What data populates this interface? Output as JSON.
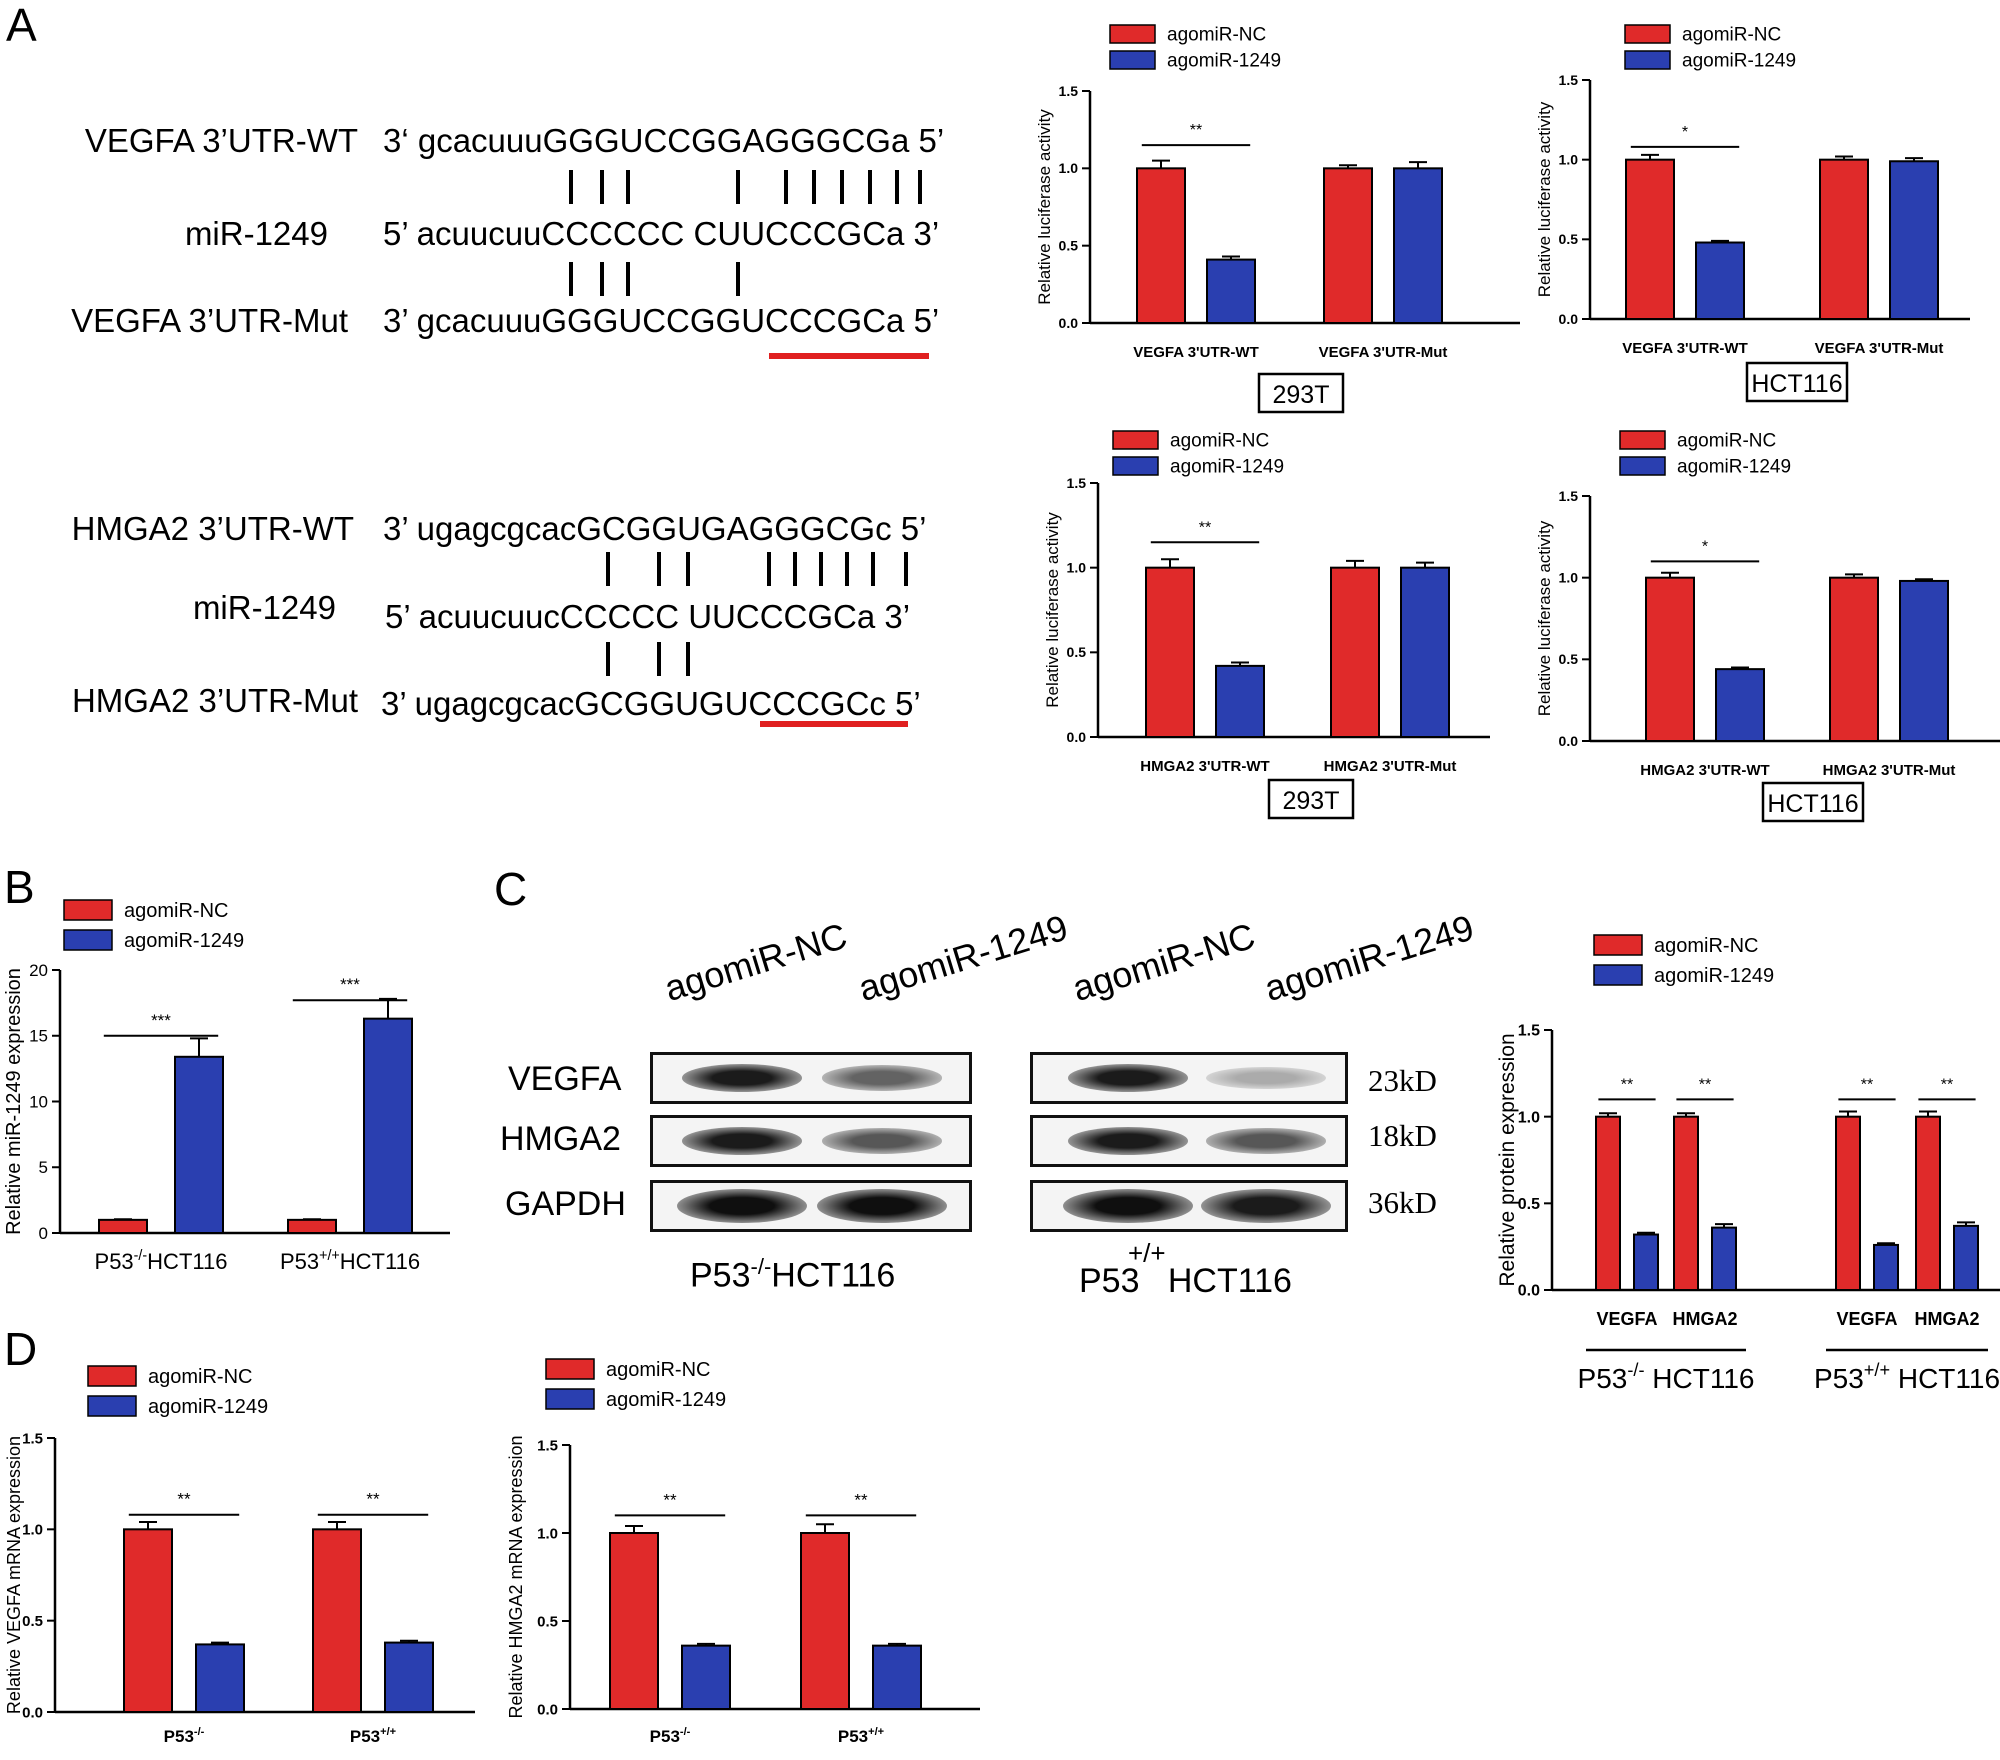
{
  "panels": {
    "A": "A",
    "B": "B",
    "C": "C",
    "D": "D"
  },
  "sequences": {
    "vegfa": {
      "wt_label": "VEGFA 3’UTR-WT",
      "wt_seq": "3‘ gcacuuuGGGUCCGGAGGGCGa 5’",
      "mir_label": "miR-1249",
      "mir_seq": "5’ acuucuuCCCCCC CUUCCCGCa 3’",
      "mut_label": "VEGFA 3’UTR-Mut",
      "mut_seq": "3’ gcacuuuGGGUCCGGUCCCGCa 5’"
    },
    "hmga2": {
      "wt_label": "HMGA2 3’UTR-WT",
      "wt_seq": "3’ ugagcgcacGCGGUGAGGGCGc 5’",
      "mir_label": "miR-1249",
      "mir_seq": "5’ acuucuucCCCCC UUCCCGCa 3’",
      "mut_label": "HMGA2 3’UTR-Mut",
      "mut_seq": "3’ ugagcgcacGCGGUGUCCCGCc 5’"
    }
  },
  "colors": {
    "red": "#e02a2a",
    "blue": "#2a3fb0",
    "underline": "#e02020"
  },
  "blot": {
    "left_lanes": [
      "agomiR-NC",
      "agomiR-1249"
    ],
    "right_lanes": [
      "agomiR-NC",
      "agomiR-1249"
    ],
    "rows": [
      "VEGFA",
      "HMGA2",
      "GAPDH"
    ],
    "kd": [
      "23kD",
      "18kD",
      "36kD"
    ],
    "left_caption_pre": "P53",
    "left_caption_sup": "-/-",
    "left_caption_post": "HCT116",
    "right_caption_sup": "+/+",
    "right_caption_pre": "P53",
    "right_caption_post": "HCT116",
    "band_intensity": {
      "left": [
        [
          0.95,
          0.65
        ],
        [
          0.95,
          0.7
        ],
        [
          1.0,
          1.0
        ]
      ],
      "right": [
        [
          0.95,
          0.35
        ],
        [
          0.95,
          0.7
        ],
        [
          1.0,
          0.95
        ]
      ]
    }
  },
  "chart_data": [
    {
      "id": "A1",
      "type": "bar",
      "series": [
        {
          "name": "agomiR-NC",
          "values": [
            1.0,
            1.0
          ],
          "errors": [
            0.05,
            0.02
          ]
        },
        {
          "name": "agomiR-1249",
          "values": [
            0.41,
            1.0
          ],
          "errors": [
            0.02,
            0.04
          ]
        }
      ],
      "categories": [
        "VEGFA 3'UTR-WT",
        "VEGFA 3'UTR-Mut"
      ],
      "ylabel": "Relative luciferase activity",
      "ylim": [
        0,
        1.5
      ],
      "yticks": [
        "0.0",
        "0.5",
        "1.0",
        "1.5"
      ],
      "yticks_values": [
        0,
        0.5,
        1.0,
        1.5
      ],
      "boxed_label": "293T",
      "significance": [
        {
          "group": 0,
          "label": "**"
        }
      ],
      "legend": "top-left"
    },
    {
      "id": "A2",
      "type": "bar",
      "series": [
        {
          "name": "agomiR-NC",
          "values": [
            1.0,
            1.0
          ],
          "errors": [
            0.03,
            0.02
          ]
        },
        {
          "name": "agomiR-1249",
          "values": [
            0.48,
            0.99
          ],
          "errors": [
            0.01,
            0.02
          ]
        }
      ],
      "categories": [
        "VEGFA 3'UTR-WT",
        "VEGFA 3'UTR-Mut"
      ],
      "ylabel": "Relative luciferase activity",
      "ylim": [
        0,
        1.5
      ],
      "yticks": [
        "0.0",
        "0.5",
        "1.0",
        "1.5"
      ],
      "yticks_values": [
        0,
        0.5,
        1.0,
        1.5
      ],
      "boxed_label": "HCT116",
      "significance": [
        {
          "group": 0,
          "label": "*"
        }
      ],
      "legend": "top-left"
    },
    {
      "id": "A3",
      "type": "bar",
      "series": [
        {
          "name": "agomiR-NC",
          "values": [
            1.0,
            1.0
          ],
          "errors": [
            0.05,
            0.04
          ]
        },
        {
          "name": "agomiR-1249",
          "values": [
            0.42,
            1.0
          ],
          "errors": [
            0.02,
            0.03
          ]
        }
      ],
      "categories": [
        "HMGA2 3'UTR-WT",
        "HMGA2 3'UTR-Mut"
      ],
      "ylabel": "Relative luciferase activity",
      "ylim": [
        0,
        1.5
      ],
      "yticks": [
        "0.0",
        "0.5",
        "1.0",
        "1.5"
      ],
      "yticks_values": [
        0,
        0.5,
        1.0,
        1.5
      ],
      "boxed_label": "293T",
      "significance": [
        {
          "group": 0,
          "label": "**"
        }
      ],
      "legend": "top-left"
    },
    {
      "id": "A4",
      "type": "bar",
      "series": [
        {
          "name": "agomiR-NC",
          "values": [
            1.0,
            1.0
          ],
          "errors": [
            0.03,
            0.02
          ]
        },
        {
          "name": "agomiR-1249",
          "values": [
            0.44,
            0.98
          ],
          "errors": [
            0.01,
            0.01
          ]
        }
      ],
      "categories": [
        "HMGA2 3'UTR-WT",
        "HMGA2 3'UTR-Mut"
      ],
      "ylabel": "Relative luciferase activity",
      "ylim": [
        0,
        1.5
      ],
      "yticks": [
        "0.0",
        "0.5",
        "1.0",
        "1.5"
      ],
      "yticks_values": [
        0,
        0.5,
        1.0,
        1.5
      ],
      "boxed_label": "HCT116",
      "significance": [
        {
          "group": 0,
          "label": "*"
        }
      ],
      "legend": "top-left"
    },
    {
      "id": "B",
      "type": "bar",
      "series": [
        {
          "name": "agomiR-NC",
          "values": [
            1.0,
            1.0
          ],
          "errors": [
            0.05,
            0.05
          ]
        },
        {
          "name": "agomiR-1249",
          "values": [
            13.4,
            16.3
          ],
          "errors": [
            1.4,
            1.5
          ]
        }
      ],
      "categories": [
        {
          "pre": "P53",
          "sup": "-/-",
          "post": "HCT116"
        },
        {
          "pre": "P53",
          "sup": "+/+",
          "post": "HCT116"
        }
      ],
      "ylabel": "Relative miR-1249 expression",
      "ylim": [
        0,
        20
      ],
      "yticks": [
        "0",
        "5",
        "10",
        "15",
        "20"
      ],
      "yticks_values": [
        0,
        5,
        10,
        15,
        20
      ],
      "significance": [
        {
          "group": 0,
          "label": "***"
        },
        {
          "group": 1,
          "label": "***"
        }
      ],
      "legend": "top-left"
    },
    {
      "id": "C",
      "type": "bar",
      "series": [
        {
          "name": "agomiR-NC",
          "values": [
            1.0,
            1.0,
            1.0,
            1.0
          ],
          "errors": [
            0.02,
            0.02,
            0.03,
            0.03
          ]
        },
        {
          "name": "agomiR-1249",
          "values": [
            0.32,
            0.36,
            0.26,
            0.37
          ],
          "errors": [
            0.01,
            0.02,
            0.01,
            0.02
          ]
        }
      ],
      "categories": [
        "VEGFA",
        "HMGA2",
        "VEGFA",
        "HMGA2"
      ],
      "groups": [
        {
          "pre": "P53",
          "sup": "-/-",
          "post": " HCT116"
        },
        {
          "pre": "P53",
          "sup": "+/+",
          "post": " HCT116"
        }
      ],
      "ylabel": "Relative protein expression",
      "ylim": [
        0,
        1.5
      ],
      "yticks": [
        "0.0",
        "0.5",
        "1.0",
        "1.5"
      ],
      "yticks_values": [
        0,
        0.5,
        1.0,
        1.5
      ],
      "significance": [
        {
          "group": 0,
          "label": "**"
        },
        {
          "group": 1,
          "label": "**"
        },
        {
          "group": 2,
          "label": "**"
        },
        {
          "group": 3,
          "label": "**"
        }
      ],
      "legend": "top-left"
    },
    {
      "id": "D1",
      "type": "bar",
      "series": [
        {
          "name": "agomiR-NC",
          "values": [
            1.0,
            1.0
          ],
          "errors": [
            0.04,
            0.04
          ]
        },
        {
          "name": "agomiR-1249",
          "values": [
            0.37,
            0.38
          ],
          "errors": [
            0.01,
            0.01
          ]
        }
      ],
      "categories": [
        {
          "pre": "P53",
          "sup": "-/-",
          "post": ""
        },
        {
          "pre": "P53",
          "sup": "+/+",
          "post": ""
        }
      ],
      "ylabel": "Relative VEGFA mRNA expression",
      "ylim": [
        0,
        1.5
      ],
      "yticks": [
        "0.0",
        "0.5",
        "1.0",
        "1.5"
      ],
      "yticks_values": [
        0,
        0.5,
        1.0,
        1.5
      ],
      "significance": [
        {
          "group": 0,
          "label": "**"
        },
        {
          "group": 1,
          "label": "**"
        }
      ],
      "legend": "top-left"
    },
    {
      "id": "D2",
      "type": "bar",
      "series": [
        {
          "name": "agomiR-NC",
          "values": [
            1.0,
            1.0
          ],
          "errors": [
            0.04,
            0.05
          ]
        },
        {
          "name": "agomiR-1249",
          "values": [
            0.36,
            0.36
          ],
          "errors": [
            0.01,
            0.01
          ]
        }
      ],
      "categories": [
        {
          "pre": "P53",
          "sup": "-/-",
          "post": ""
        },
        {
          "pre": "P53",
          "sup": "+/+",
          "post": ""
        }
      ],
      "ylabel": "Relative HMGA2 mRNA expression",
      "ylim": [
        0,
        1.5
      ],
      "yticks": [
        "0.0",
        "0.5",
        "1.0",
        "1.5"
      ],
      "yticks_values": [
        0,
        0.5,
        1.0,
        1.5
      ],
      "significance": [
        {
          "group": 0,
          "label": "**"
        },
        {
          "group": 1,
          "label": "**"
        }
      ],
      "legend": "top-left"
    }
  ]
}
